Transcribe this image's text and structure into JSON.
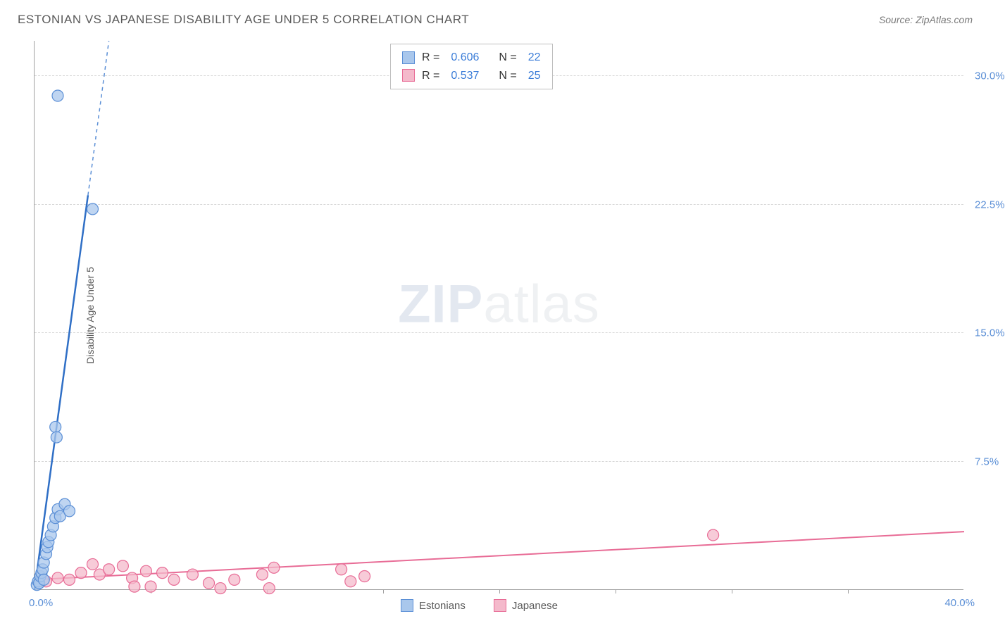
{
  "header": {
    "title": "ESTONIAN VS JAPANESE DISABILITY AGE UNDER 5 CORRELATION CHART",
    "source": "Source: ZipAtlas.com"
  },
  "ylabel": "Disability Age Under 5",
  "watermark": {
    "bold": "ZIP",
    "light": "atlas"
  },
  "axes": {
    "xlim": [
      0,
      40
    ],
    "ylim": [
      0,
      32
    ],
    "yticks": [
      {
        "v": 7.5,
        "label": "7.5%"
      },
      {
        "v": 15.0,
        "label": "15.0%"
      },
      {
        "v": 22.5,
        "label": "22.5%"
      },
      {
        "v": 30.0,
        "label": "30.0%"
      }
    ],
    "xtick_step": 5,
    "xmin_label": "0.0%",
    "xmax_label": "40.0%",
    "grid_color": "#d8d8d8",
    "axis_color": "#a0a0a0",
    "tick_label_color": "#5b8fd6",
    "tick_fontsize": 15,
    "ylabel_fontsize": 14,
    "ylabel_color": "#5a5a5a"
  },
  "legend": {
    "series1": {
      "r_label": "R =",
      "r": "0.606",
      "n_label": "N =",
      "n": "22"
    },
    "series2": {
      "r_label": "R =",
      "r": "0.537",
      "n_label": "N =",
      "n": "25"
    },
    "swatch_blue_fill": "#a9c7ec",
    "swatch_blue_border": "#5b8fd6",
    "swatch_pink_fill": "#f4b9cb",
    "swatch_pink_border": "#e86c96",
    "border_color": "#bfbfbf",
    "label_color": "#333333",
    "value_color": "#3b7dd8",
    "fontsize": 16
  },
  "bottom_legend": {
    "item1": "Estonians",
    "item2": "Japanese",
    "fontsize": 15,
    "color": "#5a5a5a"
  },
  "series": {
    "estonians": {
      "type": "scatter",
      "marker_color": "#a9c7ec",
      "marker_border": "#5b8fd6",
      "marker_radius": 8,
      "marker_opacity": 0.75,
      "line_color": "#2f6fc6",
      "line_width": 2.5,
      "dash_color": "#5b8fd6",
      "trend": {
        "x1": 0,
        "y1": 0,
        "x2": 3.2,
        "y2": 32
      },
      "solid_end_x": 2.3,
      "points": [
        [
          0.1,
          0.3
        ],
        [
          0.15,
          0.5
        ],
        [
          0.2,
          0.4
        ],
        [
          0.25,
          0.8
        ],
        [
          0.3,
          1.0
        ],
        [
          0.35,
          1.2
        ],
        [
          0.4,
          1.6
        ],
        [
          0.5,
          2.1
        ],
        [
          0.55,
          2.5
        ],
        [
          0.6,
          2.8
        ],
        [
          0.7,
          3.2
        ],
        [
          0.8,
          3.7
        ],
        [
          0.9,
          4.2
        ],
        [
          1.0,
          4.7
        ],
        [
          1.1,
          4.3
        ],
        [
          1.3,
          5.0
        ],
        [
          1.5,
          4.6
        ],
        [
          0.9,
          9.5
        ],
        [
          0.95,
          8.9
        ],
        [
          2.5,
          22.2
        ],
        [
          1.0,
          28.8
        ],
        [
          0.4,
          0.6
        ]
      ]
    },
    "japanese": {
      "type": "scatter",
      "marker_color": "#f4b9cb",
      "marker_border": "#e86c96",
      "marker_radius": 8,
      "marker_opacity": 0.75,
      "line_color": "#e86c96",
      "line_width": 2,
      "trend": {
        "x1": 0,
        "y1": 0.6,
        "x2": 40,
        "y2": 3.4
      },
      "points": [
        [
          0.5,
          0.5
        ],
        [
          1.0,
          0.7
        ],
        [
          1.5,
          0.6
        ],
        [
          2.0,
          1.0
        ],
        [
          2.5,
          1.5
        ],
        [
          2.8,
          0.9
        ],
        [
          3.2,
          1.2
        ],
        [
          3.8,
          1.4
        ],
        [
          4.2,
          0.7
        ],
        [
          4.3,
          0.2
        ],
        [
          4.8,
          1.1
        ],
        [
          5.0,
          0.2
        ],
        [
          5.5,
          1.0
        ],
        [
          6.0,
          0.6
        ],
        [
          6.8,
          0.9
        ],
        [
          7.5,
          0.4
        ],
        [
          8.0,
          0.1
        ],
        [
          8.6,
          0.6
        ],
        [
          9.8,
          0.9
        ],
        [
          10.1,
          0.1
        ],
        [
          10.3,
          1.3
        ],
        [
          13.2,
          1.2
        ],
        [
          13.6,
          0.5
        ],
        [
          14.2,
          0.8
        ],
        [
          29.2,
          3.2
        ]
      ]
    }
  }
}
